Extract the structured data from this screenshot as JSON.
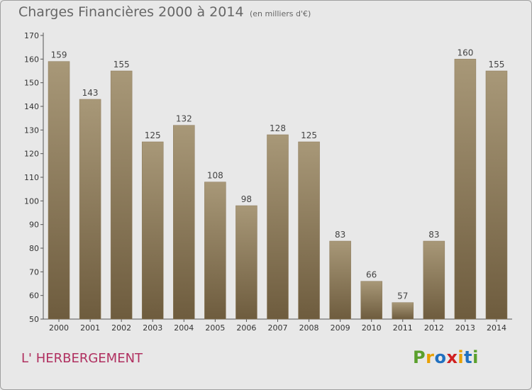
{
  "header": {
    "title": "Charges Financières 2000 à 2014",
    "unit": "(en milliers d'€)"
  },
  "footer": {
    "commune": "L' HERBERGEMENT",
    "logo": "Proxiti"
  },
  "colors": {
    "bar_top": "#a89878",
    "bar_bottom": "#6e5c3e",
    "commune_text": "#b03060",
    "logo_letters": [
      "#5aa02c",
      "#e8a000",
      "#2070c0",
      "#d02020",
      "#e8a000",
      "#2070c0",
      "#5aa02c"
    ]
  },
  "chart_data": {
    "type": "bar",
    "categories": [
      "2000",
      "2001",
      "2002",
      "2003",
      "2004",
      "2005",
      "2006",
      "2007",
      "2008",
      "2009",
      "2010",
      "2011",
      "2012",
      "2013",
      "2014"
    ],
    "values": [
      159,
      143,
      155,
      125,
      132,
      108,
      98,
      128,
      125,
      83,
      66,
      57,
      83,
      160,
      155
    ],
    "ylim": [
      50,
      170
    ],
    "yticks": [
      50,
      60,
      70,
      80,
      90,
      100,
      110,
      120,
      130,
      140,
      150,
      160,
      170
    ],
    "grid": false,
    "title": "Charges Financières 2000 à 2014",
    "subtitle": "(en milliers d'€)"
  }
}
